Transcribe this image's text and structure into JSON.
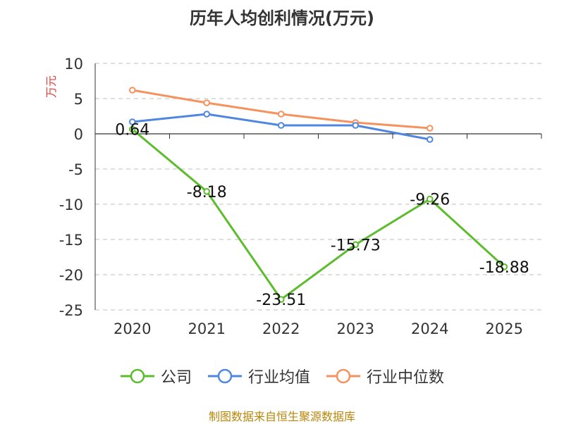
{
  "title": "历年人均创利情况(万元)",
  "source": "制图数据来自恒生聚源数据库",
  "chart_data": {
    "type": "line",
    "title": "历年人均创利情况(万元)",
    "xlabel": "",
    "ylabel": "万元",
    "categories": [
      "2020",
      "2021",
      "2022",
      "2023",
      "2024",
      "2025"
    ],
    "ylim": [
      -25,
      10
    ],
    "yticks": [
      10,
      5,
      0,
      -5,
      -10,
      -15,
      -20,
      -25
    ],
    "grid": true,
    "legend_position": "bottom",
    "series": [
      {
        "name": "公司",
        "color": "#5bbd2b",
        "values": [
          0.64,
          -8.18,
          -23.51,
          -15.73,
          -9.26,
          -18.88
        ],
        "labels": [
          "0.64",
          "-8.18",
          "-23.51",
          "-15.73",
          "-9.26",
          "-18.88"
        ]
      },
      {
        "name": "行业均值",
        "color": "#4f86e0",
        "values": [
          1.7,
          2.8,
          1.2,
          1.2,
          -0.8,
          null
        ]
      },
      {
        "name": "行业中位数",
        "color": "#f5925d",
        "values": [
          6.2,
          4.4,
          2.8,
          1.6,
          0.8,
          null
        ]
      }
    ]
  }
}
